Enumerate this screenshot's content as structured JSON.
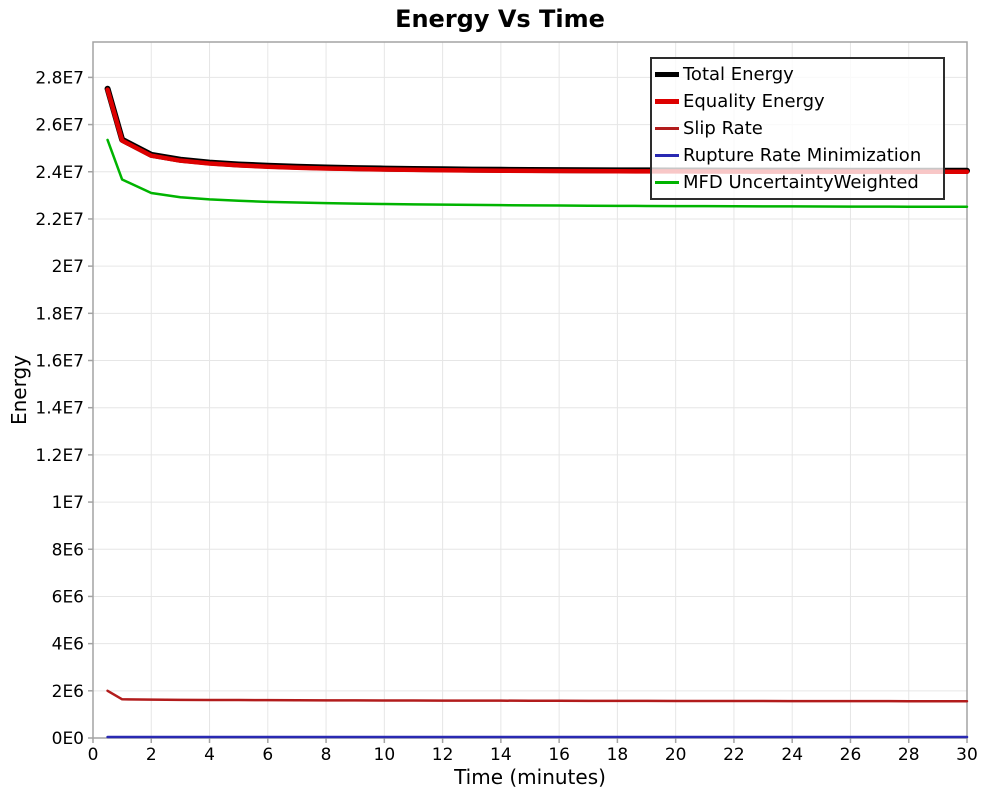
{
  "chart_data": {
    "type": "line",
    "title": "Energy Vs Time",
    "xlabel": "Time (minutes)",
    "ylabel": "Energy",
    "xlim": [
      0,
      30
    ],
    "ylim": [
      0,
      29500000
    ],
    "grid": true,
    "legend_position": "top-right",
    "xticks": {
      "labels": [
        "0",
        "2",
        "4",
        "6",
        "8",
        "10",
        "12",
        "14",
        "16",
        "18",
        "20",
        "22",
        "24",
        "26",
        "28",
        "30"
      ],
      "values": [
        0,
        2,
        4,
        6,
        8,
        10,
        12,
        14,
        16,
        18,
        20,
        22,
        24,
        26,
        28,
        30
      ]
    },
    "yticks": {
      "labels": [
        "0E0",
        "2E6",
        "4E6",
        "6E6",
        "8E6",
        "1E7",
        "1.2E7",
        "1.4E7",
        "1.6E7",
        "1.8E7",
        "2E7",
        "2.2E7",
        "2.4E7",
        "2.6E7",
        "2.8E7"
      ],
      "values": [
        0,
        2000000,
        4000000,
        6000000,
        8000000,
        10000000,
        12000000,
        14000000,
        16000000,
        18000000,
        20000000,
        22000000,
        24000000,
        26000000,
        28000000
      ]
    },
    "x": [
      0.5,
      1,
      2,
      3,
      4,
      5,
      6,
      7,
      8,
      9,
      10,
      11,
      12,
      13,
      14,
      15,
      16,
      17,
      18,
      19,
      20,
      21,
      22,
      23,
      24,
      25,
      26,
      27,
      28,
      29,
      30
    ],
    "series": [
      {
        "name": "Total Energy",
        "color": "#000000",
        "width": 6,
        "values": [
          27520000,
          25360000,
          24720000,
          24510000,
          24390000,
          24310000,
          24255000,
          24210000,
          24180000,
          24155000,
          24135000,
          24118000,
          24104000,
          24092000,
          24083000,
          24076000,
          24070000,
          24065000,
          24061000,
          24057000,
          24054000,
          24052000,
          24050000,
          24048000,
          24047000,
          24046000,
          24045000,
          24044000,
          24043000,
          24042000,
          24041000
        ]
      },
      {
        "name": "Equality Energy",
        "color": "#dd0000",
        "width": 4.5,
        "values": [
          27480000,
          25320000,
          24680000,
          24470000,
          24350000,
          24270000,
          24215000,
          24170000,
          24140000,
          24115000,
          24095000,
          24078000,
          24064000,
          24052000,
          24043000,
          24036000,
          24030000,
          24025000,
          24021000,
          24017000,
          24014000,
          24012000,
          24010000,
          24008000,
          24007000,
          24006000,
          24005000,
          24004000,
          24003000,
          24002000,
          24001000
        ]
      },
      {
        "name": "Slip Rate",
        "color": "#b21c1c",
        "width": 2.5,
        "values": [
          2000000,
          1640000,
          1625000,
          1618000,
          1613000,
          1608000,
          1604000,
          1600000,
          1597000,
          1594000,
          1591000,
          1589000,
          1586000,
          1584000,
          1582000,
          1580000,
          1578000,
          1576000,
          1574000,
          1572000,
          1570000,
          1569000,
          1567000,
          1566000,
          1564000,
          1563000,
          1562000,
          1561000,
          1560000,
          1559000,
          1558000
        ]
      },
      {
        "name": "Rupture Rate Minimization",
        "color": "#2929b2",
        "width": 2.5,
        "values": [
          40000,
          40000,
          40000,
          40000,
          40000,
          40000,
          40000,
          40000,
          40000,
          40000,
          40000,
          40000,
          40000,
          40000,
          40000,
          40000,
          40000,
          40000,
          40000,
          40000,
          40000,
          40000,
          40000,
          40000,
          40000,
          40000,
          40000,
          40000,
          40000,
          40000,
          40000
        ]
      },
      {
        "name": "MFD UncertaintyWeighted",
        "color": "#00b400",
        "width": 2.5,
        "values": [
          25350000,
          23670000,
          23100000,
          22920000,
          22830000,
          22770000,
          22725000,
          22695000,
          22670000,
          22650000,
          22633000,
          22618000,
          22605000,
          22594000,
          22584000,
          22576000,
          22569000,
          22562000,
          22556000,
          22551000,
          22546000,
          22542000,
          22538000,
          22534000,
          22531000,
          22528000,
          22525000,
          22522000,
          22519000,
          22517000,
          22515000
        ]
      }
    ]
  }
}
